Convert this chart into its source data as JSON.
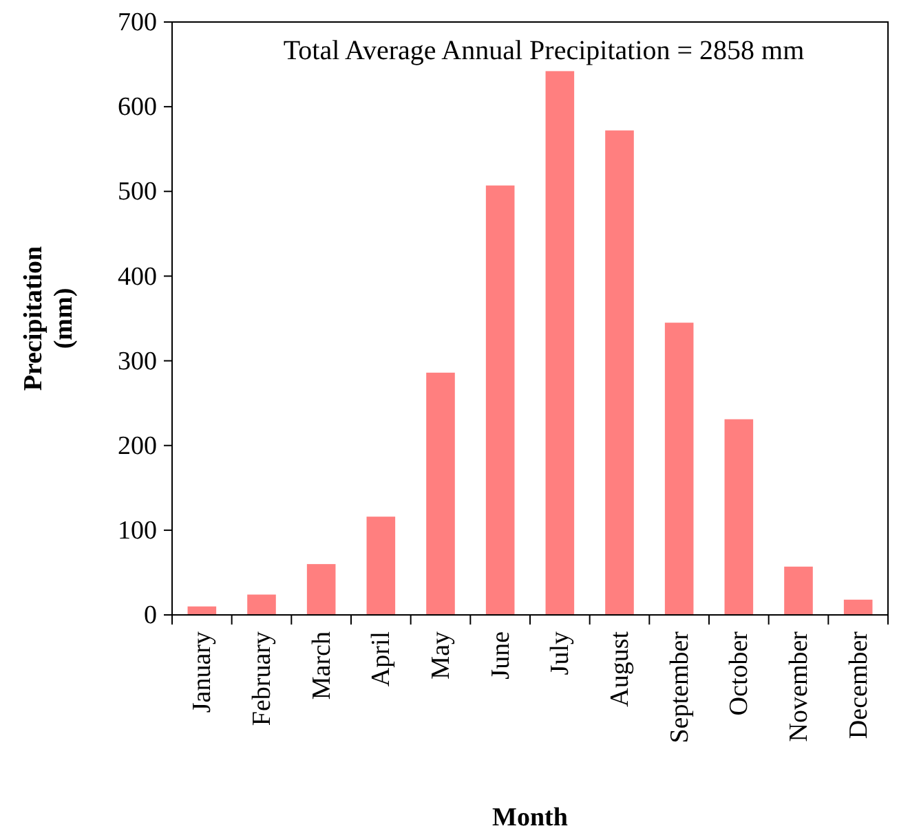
{
  "chart_data": {
    "type": "bar",
    "xlabel": "Month",
    "ylabel": "Precipitation\n(mm)",
    "categories": [
      "January",
      "February",
      "March",
      "April",
      "May",
      "June",
      "July",
      "August",
      "September",
      "October",
      "November",
      "December"
    ],
    "values": [
      10,
      24,
      60,
      116,
      286,
      507,
      642,
      572,
      345,
      231,
      57,
      18
    ],
    "color": "#ff7f7f",
    "ylim": [
      0,
      700
    ],
    "yticks": [
      0,
      100,
      200,
      300,
      400,
      500,
      600,
      700
    ],
    "grid": false,
    "annotations": [
      "Total Average Annual Precipitation = 2858 mm"
    ]
  }
}
